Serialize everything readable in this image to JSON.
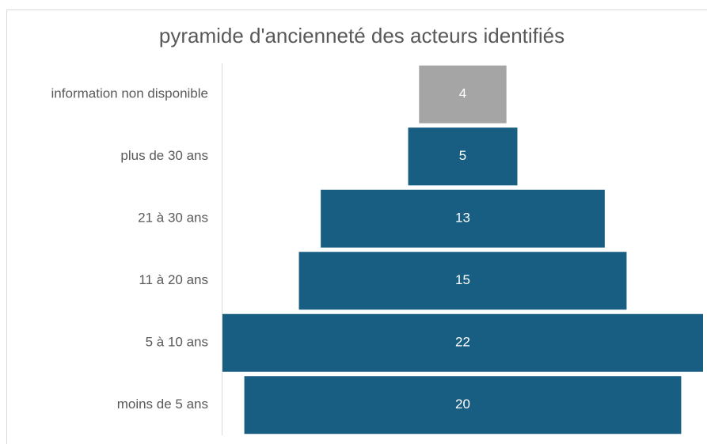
{
  "chart_data": {
    "type": "funnel",
    "title": "pyramide d'ancienneté des acteurs identifiés",
    "categories": [
      "information non disponible",
      "plus de 30 ans",
      "21 à 30 ans",
      "11 à 20 ans",
      "5 à 10 ans",
      "moins de 5 ans"
    ],
    "values": [
      4,
      5,
      13,
      15,
      22,
      20
    ],
    "colors": [
      "#a5a5a5",
      "#175e82",
      "#175e82",
      "#175e82",
      "#175e82",
      "#175e82"
    ]
  }
}
